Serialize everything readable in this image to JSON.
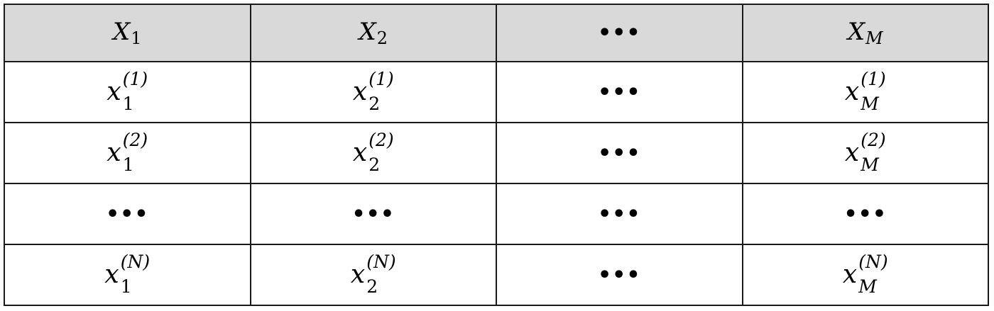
{
  "table": {
    "header": [
      {
        "kind": "var",
        "base": "X",
        "sub": "1"
      },
      {
        "kind": "var",
        "base": "X",
        "sub": "2"
      },
      {
        "kind": "dots",
        "text": "•••"
      },
      {
        "kind": "var",
        "base": "X",
        "sub": "M"
      }
    ],
    "rows": [
      [
        {
          "kind": "entry",
          "base": "x",
          "sub": "1",
          "sup": "(1)"
        },
        {
          "kind": "entry",
          "base": "x",
          "sub": "2",
          "sup": "(1)"
        },
        {
          "kind": "dots",
          "text": "•••"
        },
        {
          "kind": "entry",
          "base": "x",
          "sub": "M",
          "sup": "(1)"
        }
      ],
      [
        {
          "kind": "entry",
          "base": "x",
          "sub": "1",
          "sup": "(2)"
        },
        {
          "kind": "entry",
          "base": "x",
          "sub": "2",
          "sup": "(2)"
        },
        {
          "kind": "dots",
          "text": "•••"
        },
        {
          "kind": "entry",
          "base": "x",
          "sub": "M",
          "sup": "(2)"
        }
      ],
      [
        {
          "kind": "dots",
          "text": "•••"
        },
        {
          "kind": "dots",
          "text": "•••"
        },
        {
          "kind": "dots",
          "text": "•••"
        },
        {
          "kind": "dots",
          "text": "•••"
        }
      ],
      [
        {
          "kind": "entry",
          "base": "x",
          "sub": "1",
          "sup": "(N)"
        },
        {
          "kind": "entry",
          "base": "x",
          "sub": "2",
          "sup": "(N)"
        },
        {
          "kind": "dots",
          "text": "•••"
        },
        {
          "kind": "entry",
          "base": "x",
          "sub": "M",
          "sup": "(N)"
        }
      ]
    ]
  }
}
